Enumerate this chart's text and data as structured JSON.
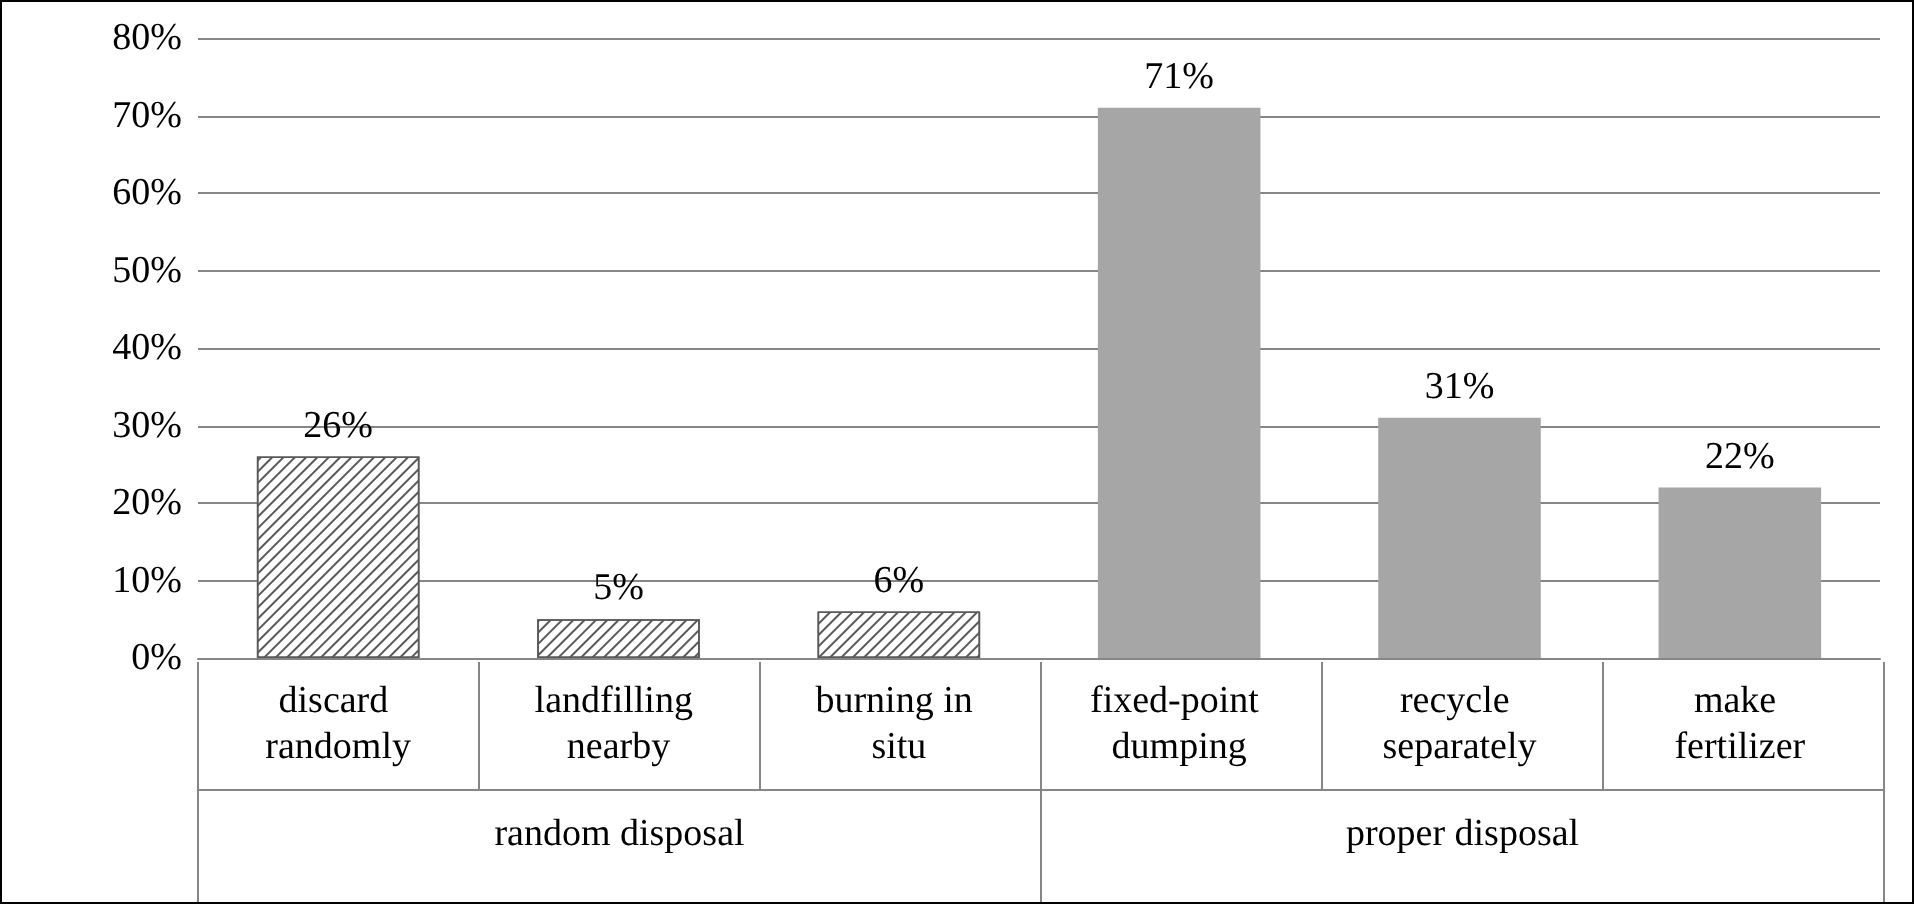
{
  "chart_data": {
    "type": "bar",
    "categories": [
      "discard randomly",
      "landfilling nearby",
      "burning in situ",
      "fixed-point dumping",
      "recycle separately",
      "make fertilizer"
    ],
    "series": [
      {
        "color": "#595959",
        "values": [
          26,
          5,
          6,
          null,
          null,
          null
        ],
        "value_labels": [
          "26%",
          "5%",
          "6%",
          null,
          null,
          null
        ]
      },
      {
        "color": "#a6a6a6",
        "values": [
          null,
          null,
          null,
          71,
          31,
          22
        ],
        "value_labels": [
          null,
          null,
          null,
          "71%",
          "31%",
          "22%"
        ]
      }
    ],
    "stacked": true,
    "ylim": [
      0,
      80
    ],
    "yticks": [
      {
        "value": 0,
        "label": "0%"
      },
      {
        "value": 10,
        "label": "10%"
      },
      {
        "value": 20,
        "label": "20%"
      },
      {
        "value": 30,
        "label": "30%"
      },
      {
        "value": 40,
        "label": "40%"
      },
      {
        "value": 50,
        "label": "50%"
      },
      {
        "value": 60,
        "label": "60%"
      },
      {
        "value": 70,
        "label": "70%"
      },
      {
        "value": 80,
        "label": "80%"
      }
    ],
    "grid": "y",
    "annotations": [
      "random disposal",
      "proper disposal"
    ]
  }
}
